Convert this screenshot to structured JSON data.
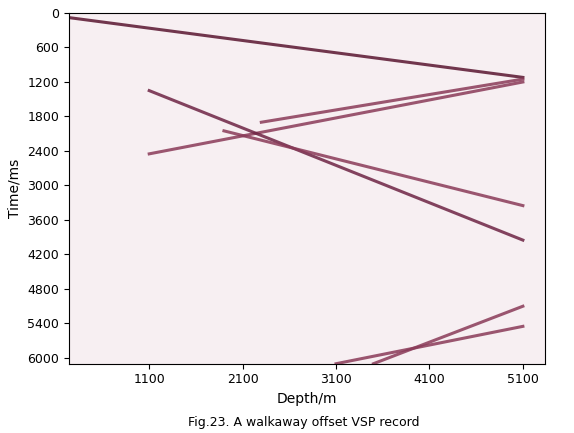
{
  "chart_data": {
    "type": "line",
    "caption": "Fig.23. A walkaway offset VSP record",
    "x_label": "Depth/m",
    "y_label": "Time/ms",
    "xlim": [
      240,
      5340
    ],
    "ylim": [
      6100,
      0
    ],
    "xticks": [
      1100,
      2100,
      3100,
      4100,
      5100
    ],
    "yticks": [
      0,
      600,
      1200,
      1800,
      2400,
      3000,
      3600,
      4200,
      4800,
      5400,
      6000
    ],
    "grid": false,
    "series": [
      {
        "color": "#5a1530",
        "x": [
          240,
          5100
        ],
        "values": [
          80,
          1120
        ]
      },
      {
        "color": "#8a3a58",
        "x": [
          2300,
          5100
        ],
        "values": [
          1900,
          1150
        ]
      },
      {
        "color": "#8a3a58",
        "x": [
          1100,
          5100
        ],
        "values": [
          2450,
          1200
        ]
      },
      {
        "color": "#6e2444",
        "x": [
          1100,
          5100
        ],
        "values": [
          1350,
          3950
        ]
      },
      {
        "color": "#8a3a58",
        "x": [
          1900,
          5100
        ],
        "values": [
          2050,
          3350
        ]
      },
      {
        "color": "#8a3a58",
        "x": [
          3500,
          5100
        ],
        "values": [
          6100,
          5100
        ]
      },
      {
        "color": "#8a3a58",
        "x": [
          3100,
          5100
        ],
        "values": [
          6100,
          5450
        ]
      }
    ]
  }
}
